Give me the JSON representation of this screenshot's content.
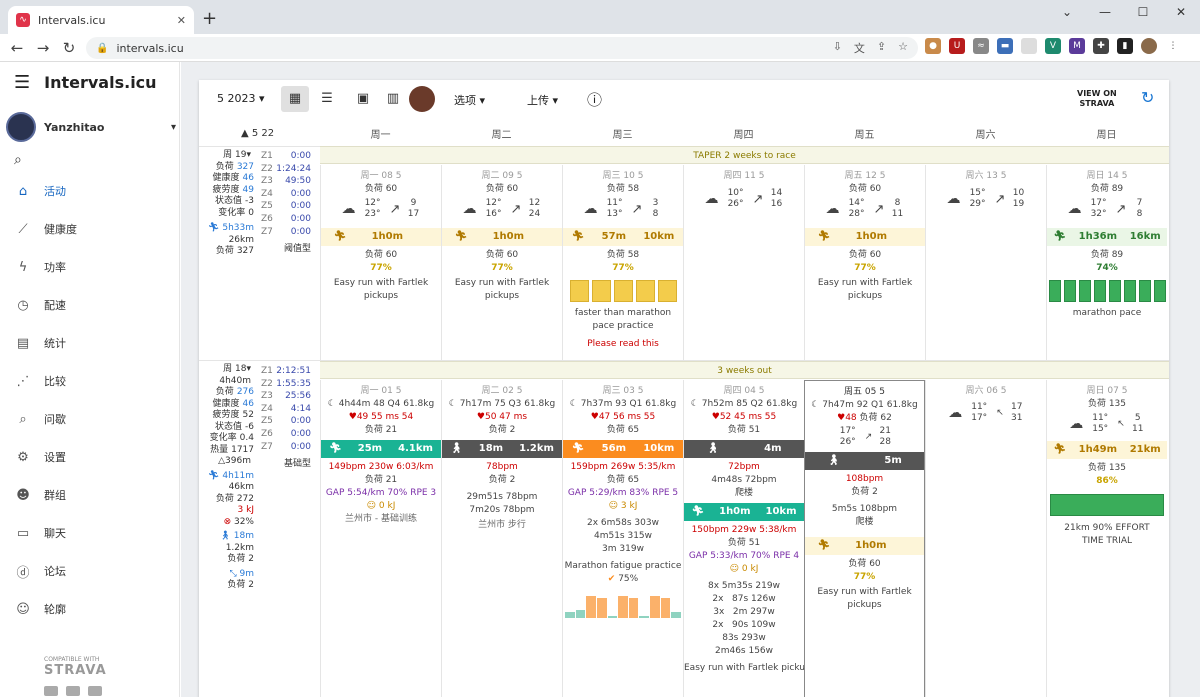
{
  "browser": {
    "tab_title": "Intervals.icu",
    "url": "intervals.icu"
  },
  "app": {
    "title": "Intervals.icu",
    "user": "Yanzhitao"
  },
  "menu": [
    {
      "label": "活动",
      "icon": "home-icon"
    },
    {
      "label": "健康度",
      "icon": "trend-icon"
    },
    {
      "label": "功率",
      "icon": "bolt-icon"
    },
    {
      "label": "配速",
      "icon": "watch-icon"
    },
    {
      "label": "统计",
      "icon": "stats-icon"
    },
    {
      "label": "比较",
      "icon": "compare-icon"
    },
    {
      "label": "问歇",
      "icon": "search-icon"
    },
    {
      "label": "设置",
      "icon": "gear-icon"
    },
    {
      "label": "群组",
      "icon": "group-icon"
    },
    {
      "label": "聊天",
      "icon": "chat-icon"
    },
    {
      "label": "论坛",
      "icon": "forum-icon"
    },
    {
      "label": "轮廓",
      "icon": "profile-icon"
    }
  ],
  "strava": {
    "compat": "COMPATIBLE WITH",
    "name": "STRAVA"
  },
  "toolbar": {
    "month": "5 2023",
    "options": "选项",
    "upload": "上传",
    "view_on": "VIEW ON",
    "strava": "STRAVA"
  },
  "header": {
    "week_label": "5 22",
    "days": [
      "周一",
      "周二",
      "周三",
      "周四",
      "周五",
      "周六",
      "周日"
    ]
  },
  "week19": {
    "banner": "TAPER 2 weeks to race",
    "stats": [
      {
        "l": "周 19▾",
        "v": ""
      },
      {
        "l": "负荷",
        "v": "327"
      },
      {
        "l": "健康度",
        "v": "46"
      },
      {
        "l": "疲劳度",
        "v": "49"
      },
      {
        "l": "状态值",
        "v": "-3"
      },
      {
        "l": "变化率",
        "v": "0"
      }
    ],
    "run": {
      "time": "5h33m",
      "dist": "26km",
      "load_l": "负荷",
      "load": "327"
    },
    "zones": [
      [
        "Z1",
        "0:00"
      ],
      [
        "Z2",
        "1:24:24"
      ],
      [
        "Z3",
        "49:50"
      ],
      [
        "Z4",
        "0:00"
      ],
      [
        "Z5",
        "0:00"
      ],
      [
        "Z6",
        "0:00"
      ],
      [
        "Z7",
        "0:00"
      ]
    ],
    "zone_type": "阈值型",
    "days": [
      {
        "date": "周一 08 5",
        "load": "负荷 60",
        "temp": "12° 23°",
        "wind": "9 17",
        "plan_time": "1h0m",
        "plan_dist": "",
        "load2": "负荷 60",
        "pct": "77%",
        "desc": "Easy run with Fartlek pickups",
        "note": ""
      },
      {
        "date": "周二 09 5",
        "load": "负荷 60",
        "temp": "12° 16°",
        "wind": "12 24",
        "plan_time": "1h0m",
        "plan_dist": "",
        "load2": "负荷 60",
        "pct": "77%",
        "desc": "Easy run with Fartlek pickups",
        "note": ""
      },
      {
        "date": "周三 10 5",
        "load": "负荷 58",
        "temp": "11° 13°",
        "wind": "3 8",
        "plan_time": "57m",
        "plan_dist": "10km",
        "load2": "负荷 58",
        "pct": "77%",
        "desc": "faster than marathon pace practice",
        "note": "Please read this"
      },
      {
        "date": "周四 11 5",
        "load": "",
        "temp": "10° 26°",
        "wind": "14 16",
        "plan_time": "",
        "plan_dist": "",
        "load2": "",
        "pct": "",
        "desc": "",
        "note": ""
      },
      {
        "date": "周五 12 5",
        "load": "负荷 60",
        "temp": "14° 28°",
        "wind": "8 11",
        "plan_time": "1h0m",
        "plan_dist": "",
        "load2": "负荷 60",
        "pct": "77%",
        "desc": "Easy run with Fartlek pickups",
        "note": ""
      },
      {
        "date": "周六 13 5",
        "load": "",
        "temp": "15° 29°",
        "wind": "10 19",
        "plan_time": "",
        "plan_dist": "",
        "load2": "",
        "pct": "",
        "desc": "",
        "note": ""
      },
      {
        "date": "周日 14 5",
        "load": "负荷 89",
        "temp": "17° 32°",
        "wind": "7 8",
        "plan_time": "1h36m",
        "plan_dist": "16km",
        "load2": "负荷 89",
        "pct": "74%",
        "desc": "marathon pace",
        "note": ""
      }
    ]
  },
  "week18": {
    "banner": "3 weeks out",
    "stats": [
      {
        "l": "周 18▾",
        "v": ""
      },
      {
        "l": "4h40m",
        "v": ""
      },
      {
        "l": "负荷",
        "v": "276"
      },
      {
        "l": "健康度",
        "v": "46"
      },
      {
        "l": "疲劳度",
        "v": "52"
      },
      {
        "l": "状态值",
        "v": "-6"
      },
      {
        "l": "变化率",
        "v": "0.4"
      },
      {
        "l": "热量",
        "v": "1717"
      },
      {
        "l": "△396m",
        "v": ""
      }
    ],
    "run": {
      "time": "4h11m",
      "dist": "46km",
      "load_l": "负荷",
      "load": "272",
      "kj": "3 kJ",
      "pct": "32%"
    },
    "walk": {
      "time": "18m",
      "dist": "1.2km",
      "load": "负荷 2"
    },
    "other": {
      "time": "9m",
      "load": "负荷 2"
    },
    "zones": [
      [
        "Z1",
        "2:12:51"
      ],
      [
        "Z2",
        "1:55:35"
      ],
      [
        "Z3",
        "25:56"
      ],
      [
        "Z4",
        "4:14"
      ],
      [
        "Z5",
        "0:00"
      ],
      [
        "Z6",
        "0:00"
      ],
      [
        "Z7",
        "0:00"
      ]
    ],
    "zone_type": "基础型",
    "mon": {
      "date": "周一 01 5",
      "sleep": "4h44m 48 Q4 61.8kg",
      "hr": "49 55 ms  54",
      "load": "负荷 21",
      "bar_time": "25m",
      "bar_dist": "4.1km",
      "stats": "149bpm 230w 6:03/km",
      "load2": "负荷 21",
      "gap": "GAP 5:54/km 70% RPE 3",
      "kj": "0 kJ",
      "place": "兰州市 - 基础训练"
    },
    "tue": {
      "date": "周二 02 5",
      "sleep": "7h17m 75 Q3 61.8kg",
      "hr": "50 47 ms",
      "load": "负荷 2",
      "bar_time": "18m",
      "bar_dist": "1.2km",
      "stats": "78bpm",
      "load2": "负荷 2",
      "l1": "29m51s 78bpm",
      "l2": "7m20s 78bpm",
      "place": "兰州市 步行"
    },
    "wed": {
      "date": "周三 03 5",
      "sleep": "7h37m 93 Q1 61.8kg",
      "hr": "47 56 ms  55",
      "load": "负荷 65",
      "bar_time": "56m",
      "bar_dist": "10km",
      "stats": "159bpm 269w 5:35/km",
      "load2": "负荷 65",
      "gap": "GAP 5:29/km 83% RPE 5",
      "kj": "3 kJ",
      "l1": "2x 6m58s 303w",
      "l2": "4m51s 315w",
      "l3": "3m 319w",
      "desc": "Marathon fatigue practice",
      "pct": "75%"
    },
    "thu": {
      "date": "周四 04 5",
      "sleep": "7h52m 85 Q2 61.8kg",
      "hr": "52 45 ms  55",
      "load": "负荷 51",
      "bar1_time": "4m",
      "stats1": "72bpm",
      "l0": "4m48s 72bpm",
      "act": "爬楼",
      "bar_time": "1h0m",
      "bar_dist": "10km",
      "stats": "150bpm 229w 5:38/km",
      "load2": "负荷 51",
      "gap": "GAP 5:33/km 70% RPE 4",
      "kj": "0 kJ",
      "ints": [
        "8x 5m35s 219w",
        "2x   87s 126w",
        "3x   2m 297w",
        "2x   90s 109w",
        "83s 293w",
        "2m46s 156w"
      ],
      "desc": "Easy run with Fartlek pickups"
    },
    "fri": {
      "date": "周五 05 5",
      "sleep": "7h47m 92 Q1 61.8kg",
      "hr": "48",
      "load": "负荷 62",
      "temp": "17° 26°",
      "wind": "21 28",
      "bar_time": "5m",
      "stats": "108bpm",
      "load2": "负荷 2",
      "l1": "5m5s 108bpm",
      "act": "爬楼",
      "plan_time": "1h0m",
      "load3": "负荷 60",
      "pct": "77%",
      "desc": "Easy run with Fartlek pickups"
    },
    "sat": {
      "date": "周六 06 5",
      "temp": "11° 17°",
      "wind": "17 31"
    },
    "sun": {
      "date": "周日 07 5",
      "load": "负荷 135",
      "temp": "11° 15°",
      "wind": "5 11",
      "plan_time": "1h49m",
      "plan_dist": "21km",
      "load2": "负荷 135",
      "pct": "86%",
      "desc": "21km 90% EFFORT TIME TRIAL"
    }
  }
}
